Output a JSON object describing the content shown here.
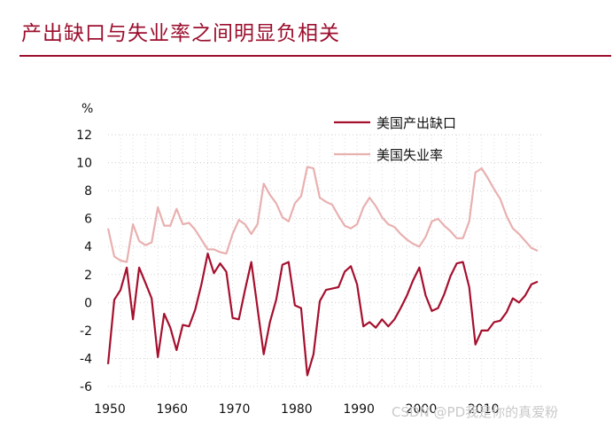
{
  "header": {
    "title": "产出缺口与失业率之间明显负相关"
  },
  "watermark": "CSDN @PD我是你的真爱粉",
  "colors": {
    "accent": "#9c0f2e",
    "gap_line": "#a5102e",
    "unemp_line": "#e9b0b0"
  },
  "chart_data": {
    "type": "line",
    "title": "产出缺口与失业率之间明显负相关",
    "ylabel": "%",
    "xlabel": "",
    "ylim": [
      -6,
      12
    ],
    "xlim": [
      1950,
      2019
    ],
    "yticks": [
      "12",
      "10",
      "8",
      "6",
      "4",
      "2",
      "0",
      "-2",
      "-4",
      "-6"
    ],
    "ytick_values": [
      12,
      10,
      8,
      6,
      4,
      2,
      0,
      -2,
      -4,
      -6
    ],
    "xticks": [
      "1950",
      "1960",
      "1970",
      "1980",
      "1990",
      "2000",
      "2010"
    ],
    "xtick_values": [
      1950,
      1960,
      1970,
      1980,
      1990,
      2000,
      2010
    ],
    "grid": true,
    "legend_position": "top-right",
    "x": [
      1950,
      1951,
      1952,
      1953,
      1954,
      1955,
      1956,
      1957,
      1958,
      1959,
      1960,
      1961,
      1962,
      1963,
      1964,
      1965,
      1966,
      1967,
      1968,
      1969,
      1970,
      1971,
      1972,
      1973,
      1974,
      1975,
      1976,
      1977,
      1978,
      1979,
      1980,
      1981,
      1982,
      1983,
      1984,
      1985,
      1986,
      1987,
      1988,
      1989,
      1990,
      1991,
      1992,
      1993,
      1994,
      1995,
      1996,
      1997,
      1998,
      1999,
      2000,
      2001,
      2002,
      2003,
      2004,
      2005,
      2006,
      2007,
      2008,
      2009,
      2010,
      2011,
      2012,
      2013,
      2014,
      2015,
      2016,
      2017,
      2018,
      2019
    ],
    "series": [
      {
        "name": "美国产出缺口",
        "values": [
          -4.4,
          0.2,
          0.9,
          2.5,
          -1.2,
          2.5,
          1.4,
          0.3,
          -3.9,
          -0.8,
          -1.8,
          -3.4,
          -1.6,
          -1.7,
          -0.5,
          1.3,
          3.5,
          2.1,
          2.8,
          2.2,
          -1.1,
          -1.2,
          0.9,
          2.9,
          -0.4,
          -3.7,
          -1.4,
          0.2,
          2.7,
          2.9,
          -0.2,
          -0.4,
          -5.2,
          -3.7,
          0.1,
          0.9,
          1.0,
          1.1,
          2.2,
          2.6,
          1.3,
          -1.7,
          -1.4,
          -1.8,
          -1.2,
          -1.7,
          -1.2,
          -0.4,
          0.5,
          1.6,
          2.5,
          0.5,
          -0.6,
          -0.4,
          0.6,
          1.9,
          2.8,
          2.9,
          1.1,
          -3.0,
          -2.0,
          -2.0,
          -1.4,
          -1.3,
          -0.7,
          0.3,
          0.0,
          0.5,
          1.3,
          1.5
        ]
      },
      {
        "name": "美国失业率",
        "values": [
          5.3,
          3.3,
          3.0,
          2.9,
          5.6,
          4.4,
          4.1,
          4.3,
          6.8,
          5.5,
          5.5,
          6.7,
          5.6,
          5.7,
          5.2,
          4.5,
          3.8,
          3.8,
          3.6,
          3.5,
          4.9,
          5.9,
          5.6,
          4.9,
          5.6,
          8.5,
          7.7,
          7.1,
          6.1,
          5.8,
          7.1,
          7.6,
          9.7,
          9.6,
          7.5,
          7.2,
          7.0,
          6.2,
          5.5,
          5.3,
          5.6,
          6.8,
          7.5,
          6.9,
          6.1,
          5.6,
          5.4,
          4.9,
          4.5,
          4.2,
          4.0,
          4.7,
          5.8,
          6.0,
          5.5,
          5.1,
          4.6,
          4.6,
          5.8,
          9.3,
          9.6,
          8.9,
          8.1,
          7.4,
          6.2,
          5.3,
          4.9,
          4.4,
          3.9,
          3.7
        ]
      }
    ]
  }
}
